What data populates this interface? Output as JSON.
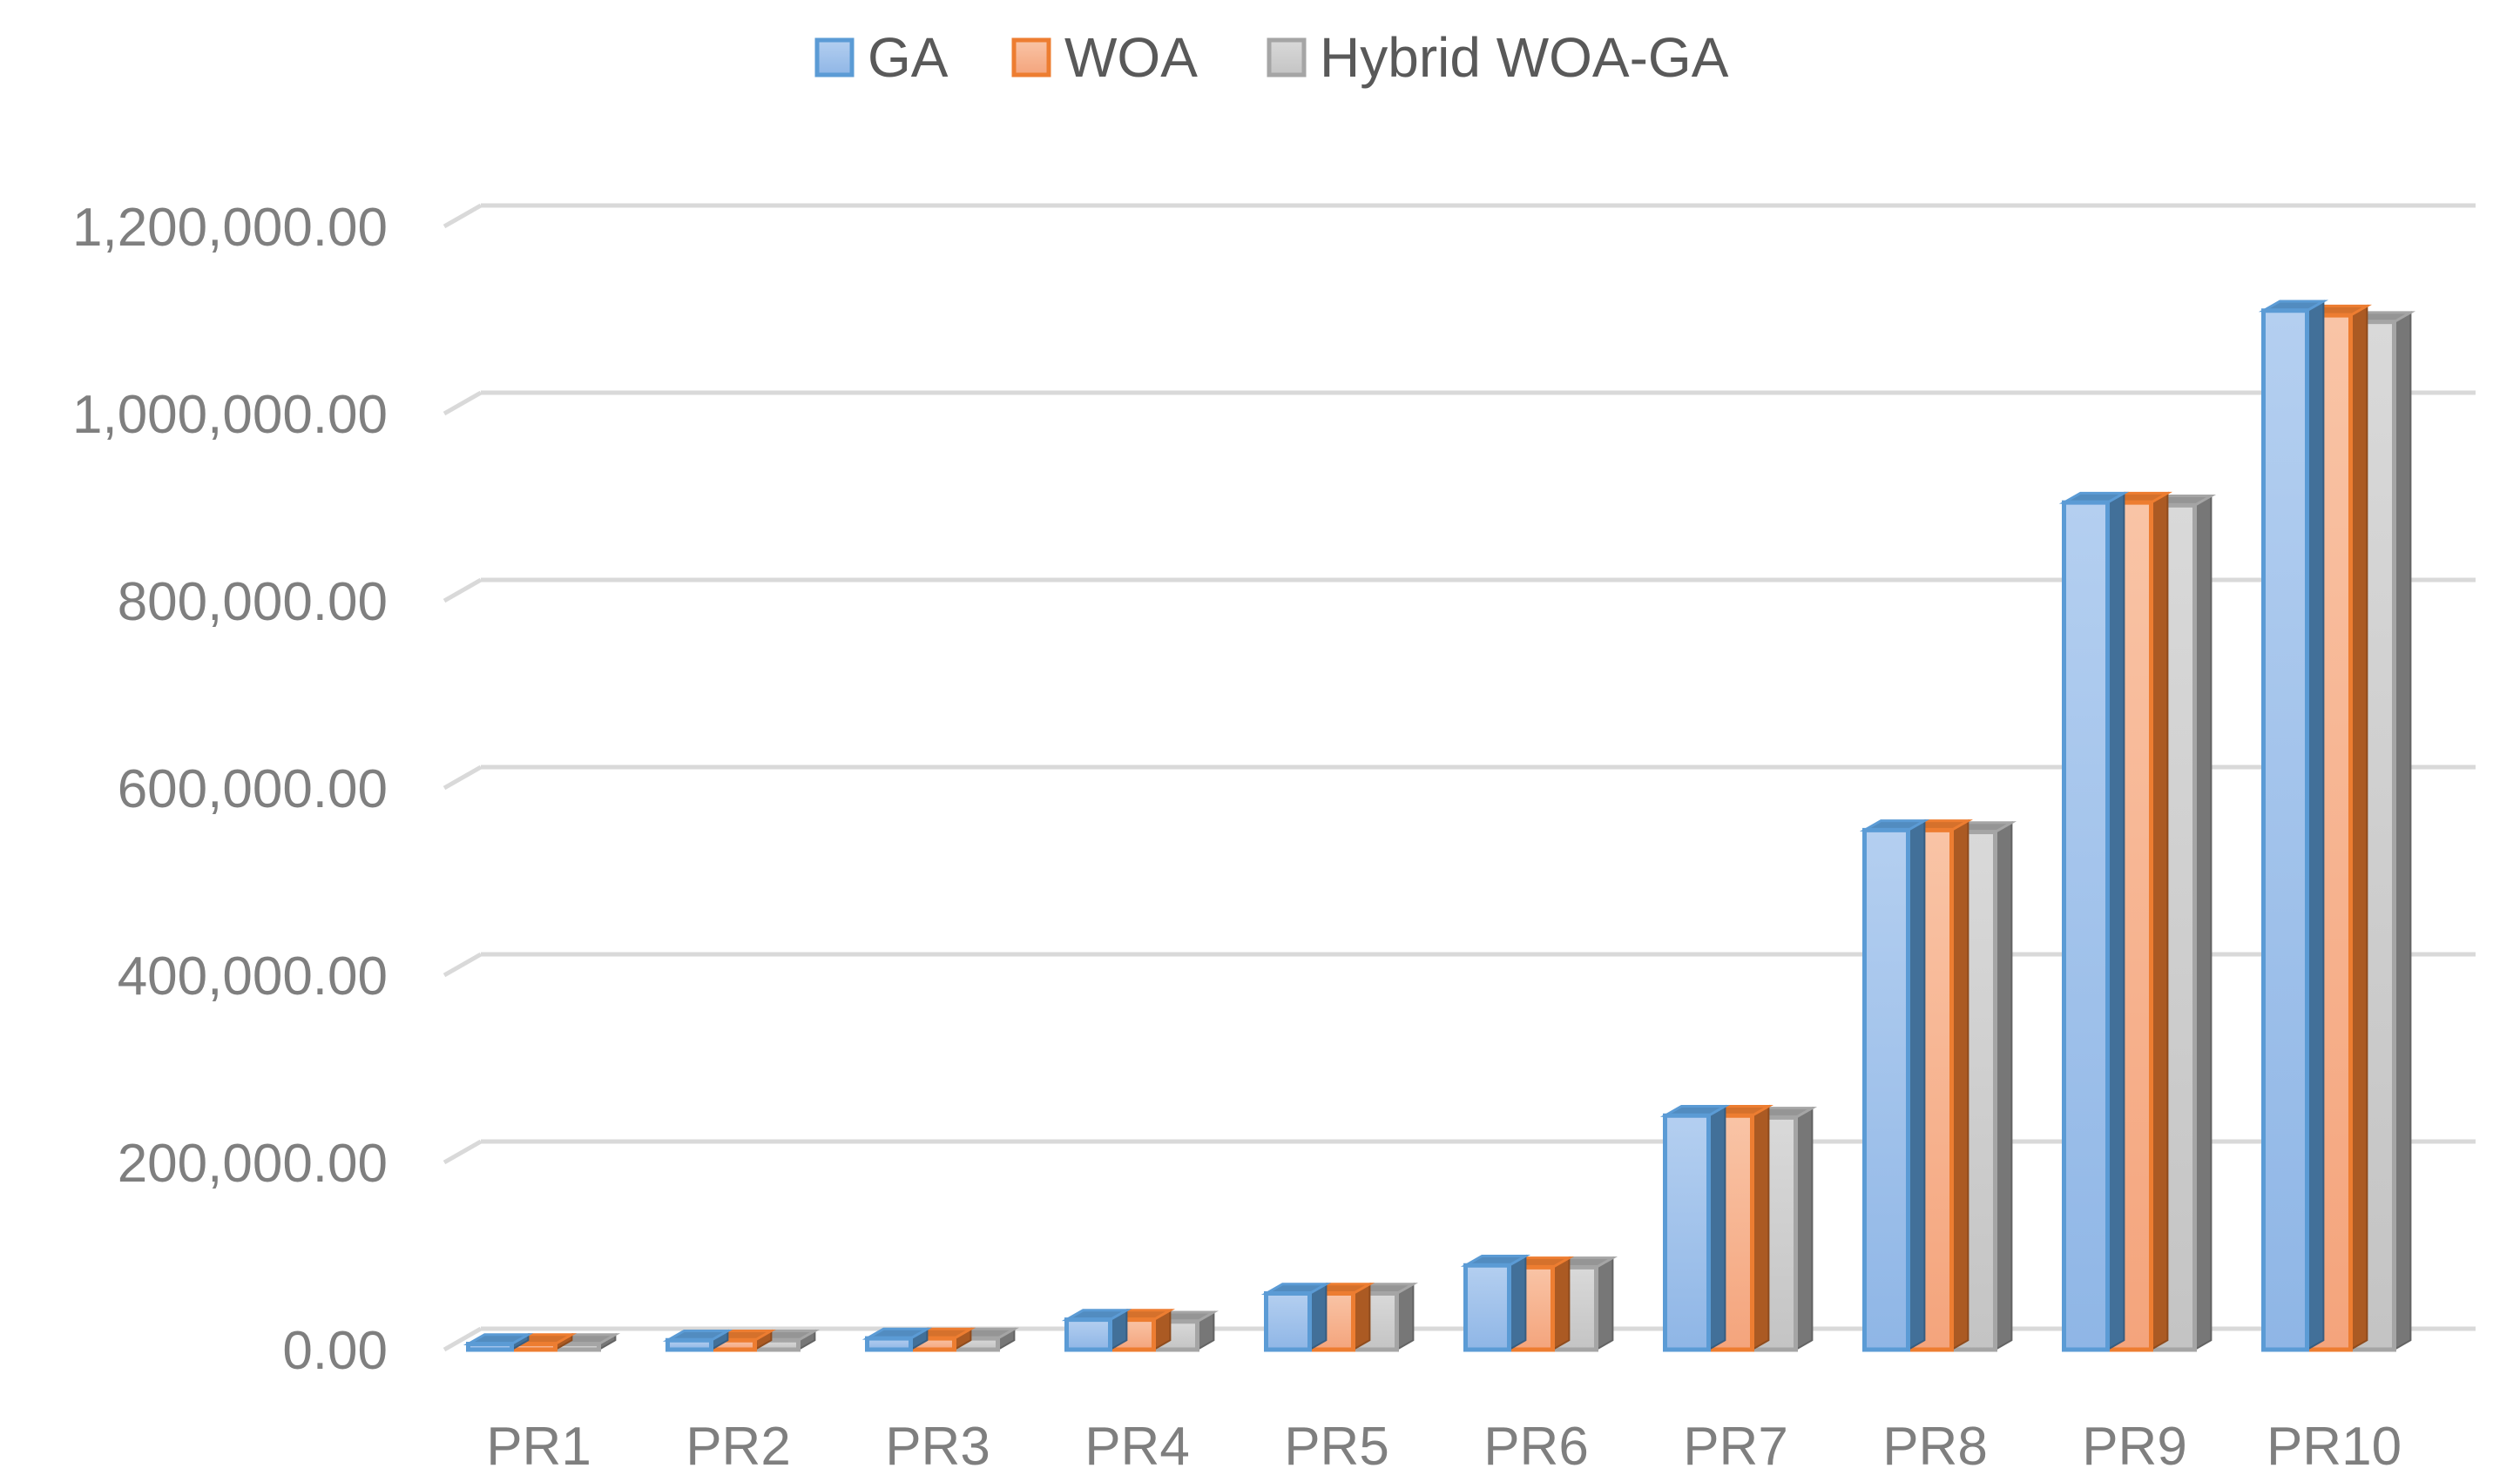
{
  "chart_data": {
    "type": "bar",
    "title": "",
    "xlabel": "",
    "ylabel": "",
    "categories": [
      "PR1",
      "PR2",
      "PR3",
      "PR4",
      "PR5",
      "PR6",
      "PR7",
      "PR8",
      "PR9",
      "PR10"
    ],
    "series": [
      {
        "name": "GA",
        "color": "#5b9bd5",
        "values": [
          6000,
          10000,
          12000,
          32000,
          60000,
          90000,
          250000,
          555000,
          905000,
          1110000
        ]
      },
      {
        "name": "WOA",
        "color": "#ed7d31",
        "values": [
          6000,
          10000,
          12000,
          32000,
          60000,
          88000,
          250000,
          555000,
          905000,
          1105000
        ]
      },
      {
        "name": "Hybrid WOA-GA",
        "color": "#a5a5a5",
        "values": [
          6000,
          10000,
          12000,
          30000,
          60000,
          88000,
          248000,
          553000,
          902000,
          1098000
        ]
      }
    ],
    "ylim": [
      0,
      1200000
    ],
    "yticks": [
      "0.00",
      "200,000.00",
      "400,000.00",
      "600,000.00",
      "800,000.00",
      "1,000,000.00",
      "1,200,000.00"
    ],
    "grid": true,
    "legend_position": "top-center",
    "style": "3d-clustered-column"
  }
}
